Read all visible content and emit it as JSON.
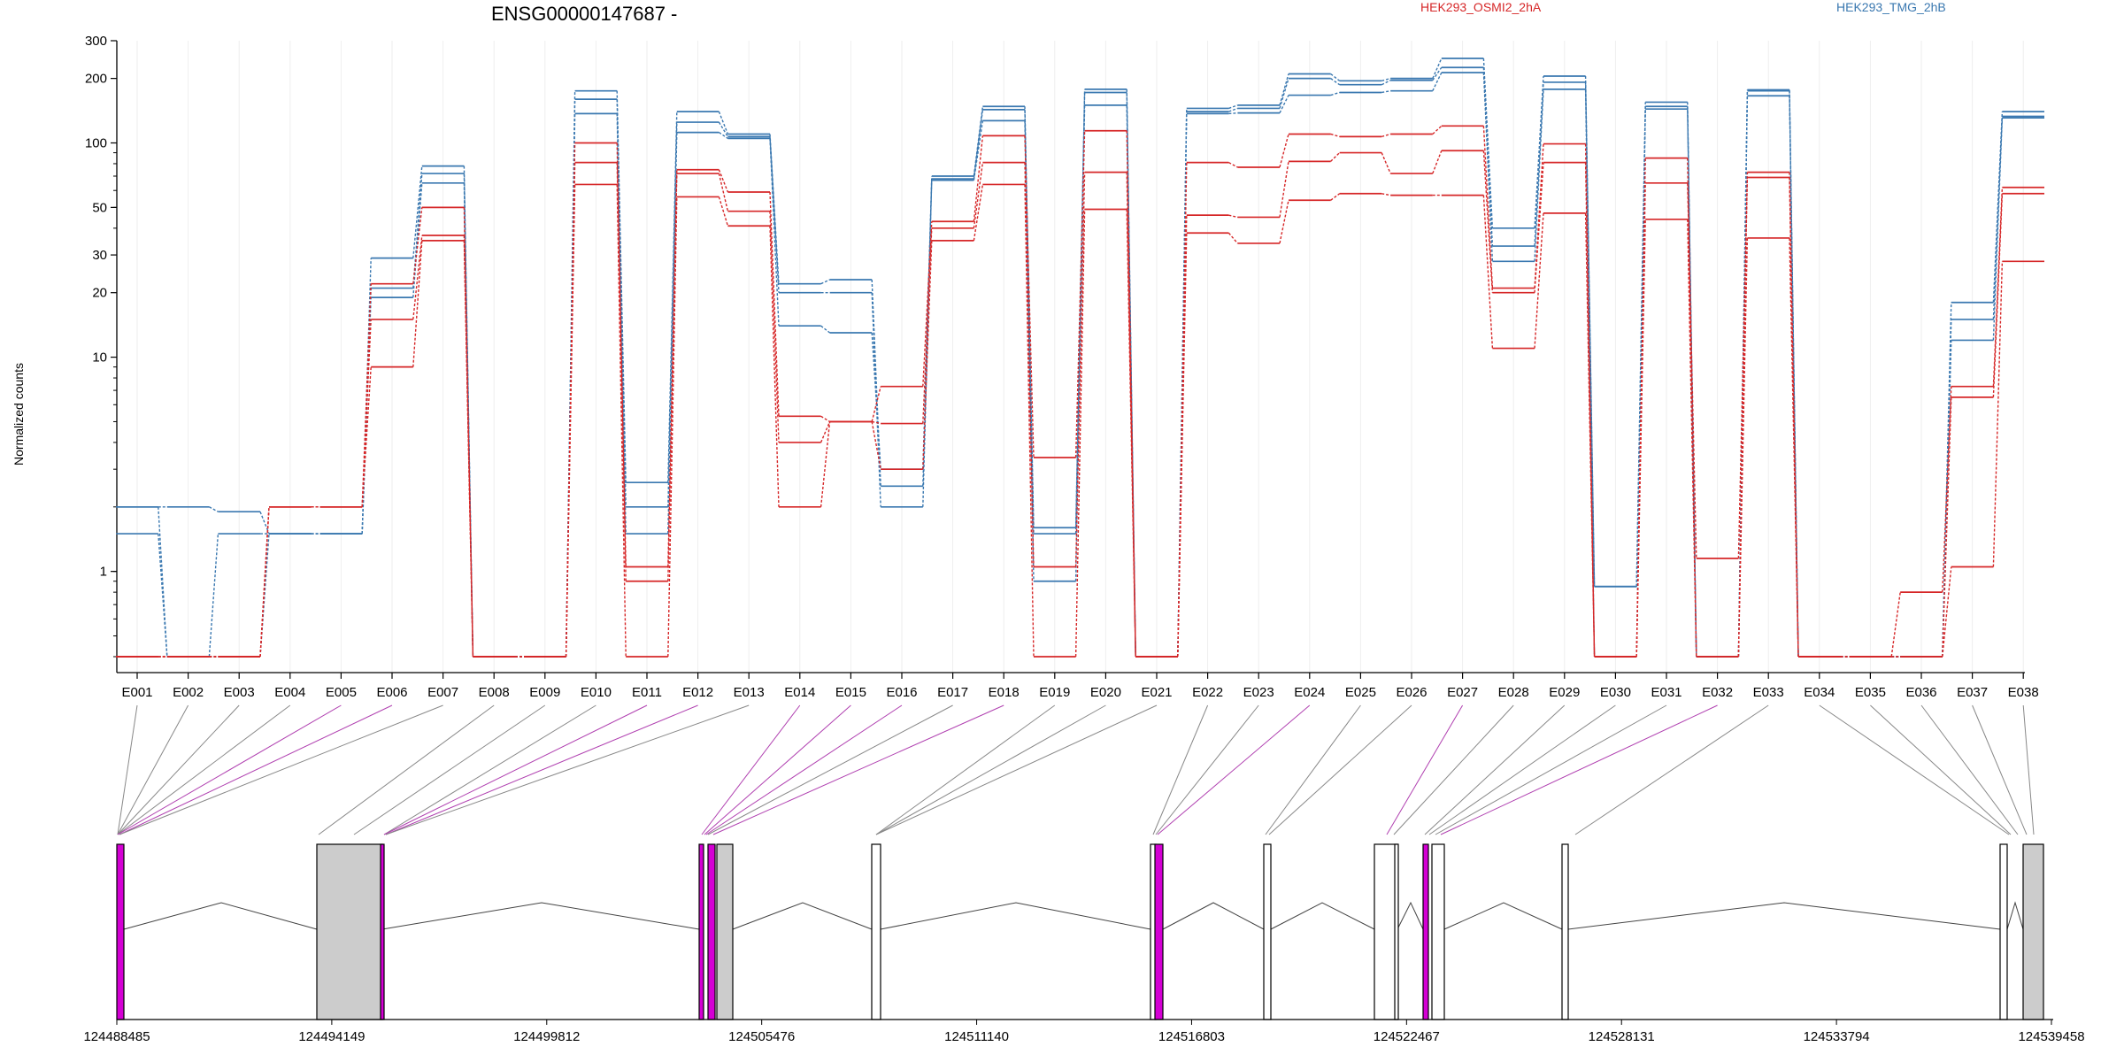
{
  "chart_data": {
    "type": "line",
    "title": "ENSG00000147687 -",
    "ylabel": "Normalized counts",
    "yscale": "log",
    "ylim": [
      0.4,
      300
    ],
    "y_ticks": [
      1,
      10,
      20,
      30,
      50,
      100,
      200,
      300
    ],
    "y_tick_labels": [
      "1",
      "10",
      "20",
      "30",
      "50",
      "100",
      "200",
      "300"
    ],
    "grid": true,
    "legend_position": "top",
    "colors": {
      "HEK293_OSMI2_2hA": "#d62728",
      "HEK293_TMG_2hB": "#3a78b0",
      "connector_grey": "#888888",
      "connector_magenta": "#b040b0",
      "exon_gray": "#cccccc",
      "exon_magenta": "#d400d4"
    },
    "exons": [
      "E001",
      "E002",
      "E003",
      "E004",
      "E005",
      "E006",
      "E007",
      "E008",
      "E009",
      "E010",
      "E011",
      "E012",
      "E013",
      "E014",
      "E015",
      "E016",
      "E017",
      "E018",
      "E019",
      "E020",
      "E021",
      "E022",
      "E023",
      "E024",
      "E025",
      "E026",
      "E027",
      "E028",
      "E029",
      "E030",
      "E031",
      "E032",
      "E033",
      "E034",
      "E035",
      "E036",
      "E037",
      "E038"
    ],
    "series": [
      {
        "name": "HEK293_TMG_2hB",
        "group": "HEK293_TMG_2hB",
        "values": [
          2.0,
          0.4,
          0.4,
          1.5,
          1.5,
          29,
          78,
          0.4,
          0.4,
          175,
          2.6,
          140,
          110,
          22,
          23,
          2.5,
          70,
          148,
          1.6,
          178,
          0.4,
          145,
          150,
          210,
          195,
          200,
          248,
          40,
          205,
          0.85,
          155,
          0.4,
          177,
          0.4,
          0.4,
          0.4,
          18,
          140
        ]
      },
      {
        "name": "",
        "group": "HEK293_TMG_2hB",
        "values": [
          2.0,
          2.0,
          1.9,
          1.5,
          1.5,
          21,
          72,
          0.4,
          0.4,
          160,
          2.0,
          125,
          107,
          20,
          20,
          2.0,
          68,
          143,
          1.5,
          172,
          0.4,
          140,
          145,
          200,
          187,
          196,
          225,
          33,
          192,
          0.85,
          148,
          0.4,
          175,
          0.4,
          0.4,
          0.4,
          15,
          133
        ]
      },
      {
        "name": "",
        "group": "HEK293_TMG_2hB",
        "values": [
          1.5,
          0.4,
          1.5,
          1.5,
          1.5,
          19,
          65,
          0.4,
          0.4,
          137,
          1.5,
          112,
          105,
          14,
          13,
          3.0,
          67,
          127,
          0.9,
          150,
          0.4,
          137,
          138,
          167,
          172,
          175,
          213,
          28,
          178,
          0.4,
          144,
          0.4,
          166,
          0.4,
          0.4,
          0.4,
          12,
          131
        ]
      },
      {
        "name": "HEK293_OSMI2_2hA",
        "group": "HEK293_OSMI2_2hA",
        "values": [
          0.4,
          0.4,
          0.4,
          2.0,
          2.0,
          22,
          50,
          0.4,
          0.4,
          100,
          1.05,
          75,
          59,
          5.3,
          5.0,
          7.3,
          43,
          108,
          3.4,
          114,
          0.4,
          81,
          77,
          110,
          107,
          110,
          120,
          21,
          99,
          0.4,
          85,
          0.4,
          73,
          0.4,
          0.4,
          0.8,
          7.3,
          62
        ]
      },
      {
        "name": "",
        "group": "HEK293_OSMI2_2hA",
        "values": [
          0.4,
          0.4,
          0.4,
          2.0,
          2.0,
          15,
          37,
          0.4,
          0.4,
          81,
          0.9,
          72,
          48,
          4.0,
          5.0,
          4.9,
          40,
          81,
          1.05,
          73,
          0.4,
          46,
          45,
          82,
          90,
          72,
          92,
          20,
          81,
          0.4,
          65,
          1.15,
          69,
          0.4,
          0.4,
          0.4,
          6.5,
          58
        ]
      },
      {
        "name": "",
        "group": "HEK293_OSMI2_2hA",
        "values": [
          0.4,
          0.4,
          0.4,
          2.0,
          2.0,
          9,
          35,
          0.4,
          0.4,
          64,
          0.4,
          56,
          41,
          2.0,
          5.0,
          3.0,
          35,
          64,
          0.4,
          49,
          0.4,
          38,
          34,
          54,
          58,
          57,
          57,
          11,
          47,
          0.4,
          44,
          0.4,
          36,
          0.4,
          0.4,
          0.4,
          1.05,
          28
        ]
      }
    ],
    "genomic_axis_labels": [
      "124488485",
      "124494149",
      "124499812",
      "124505476",
      "124511140",
      "124516803",
      "124522467",
      "124528131",
      "124533794",
      "124539458"
    ]
  }
}
